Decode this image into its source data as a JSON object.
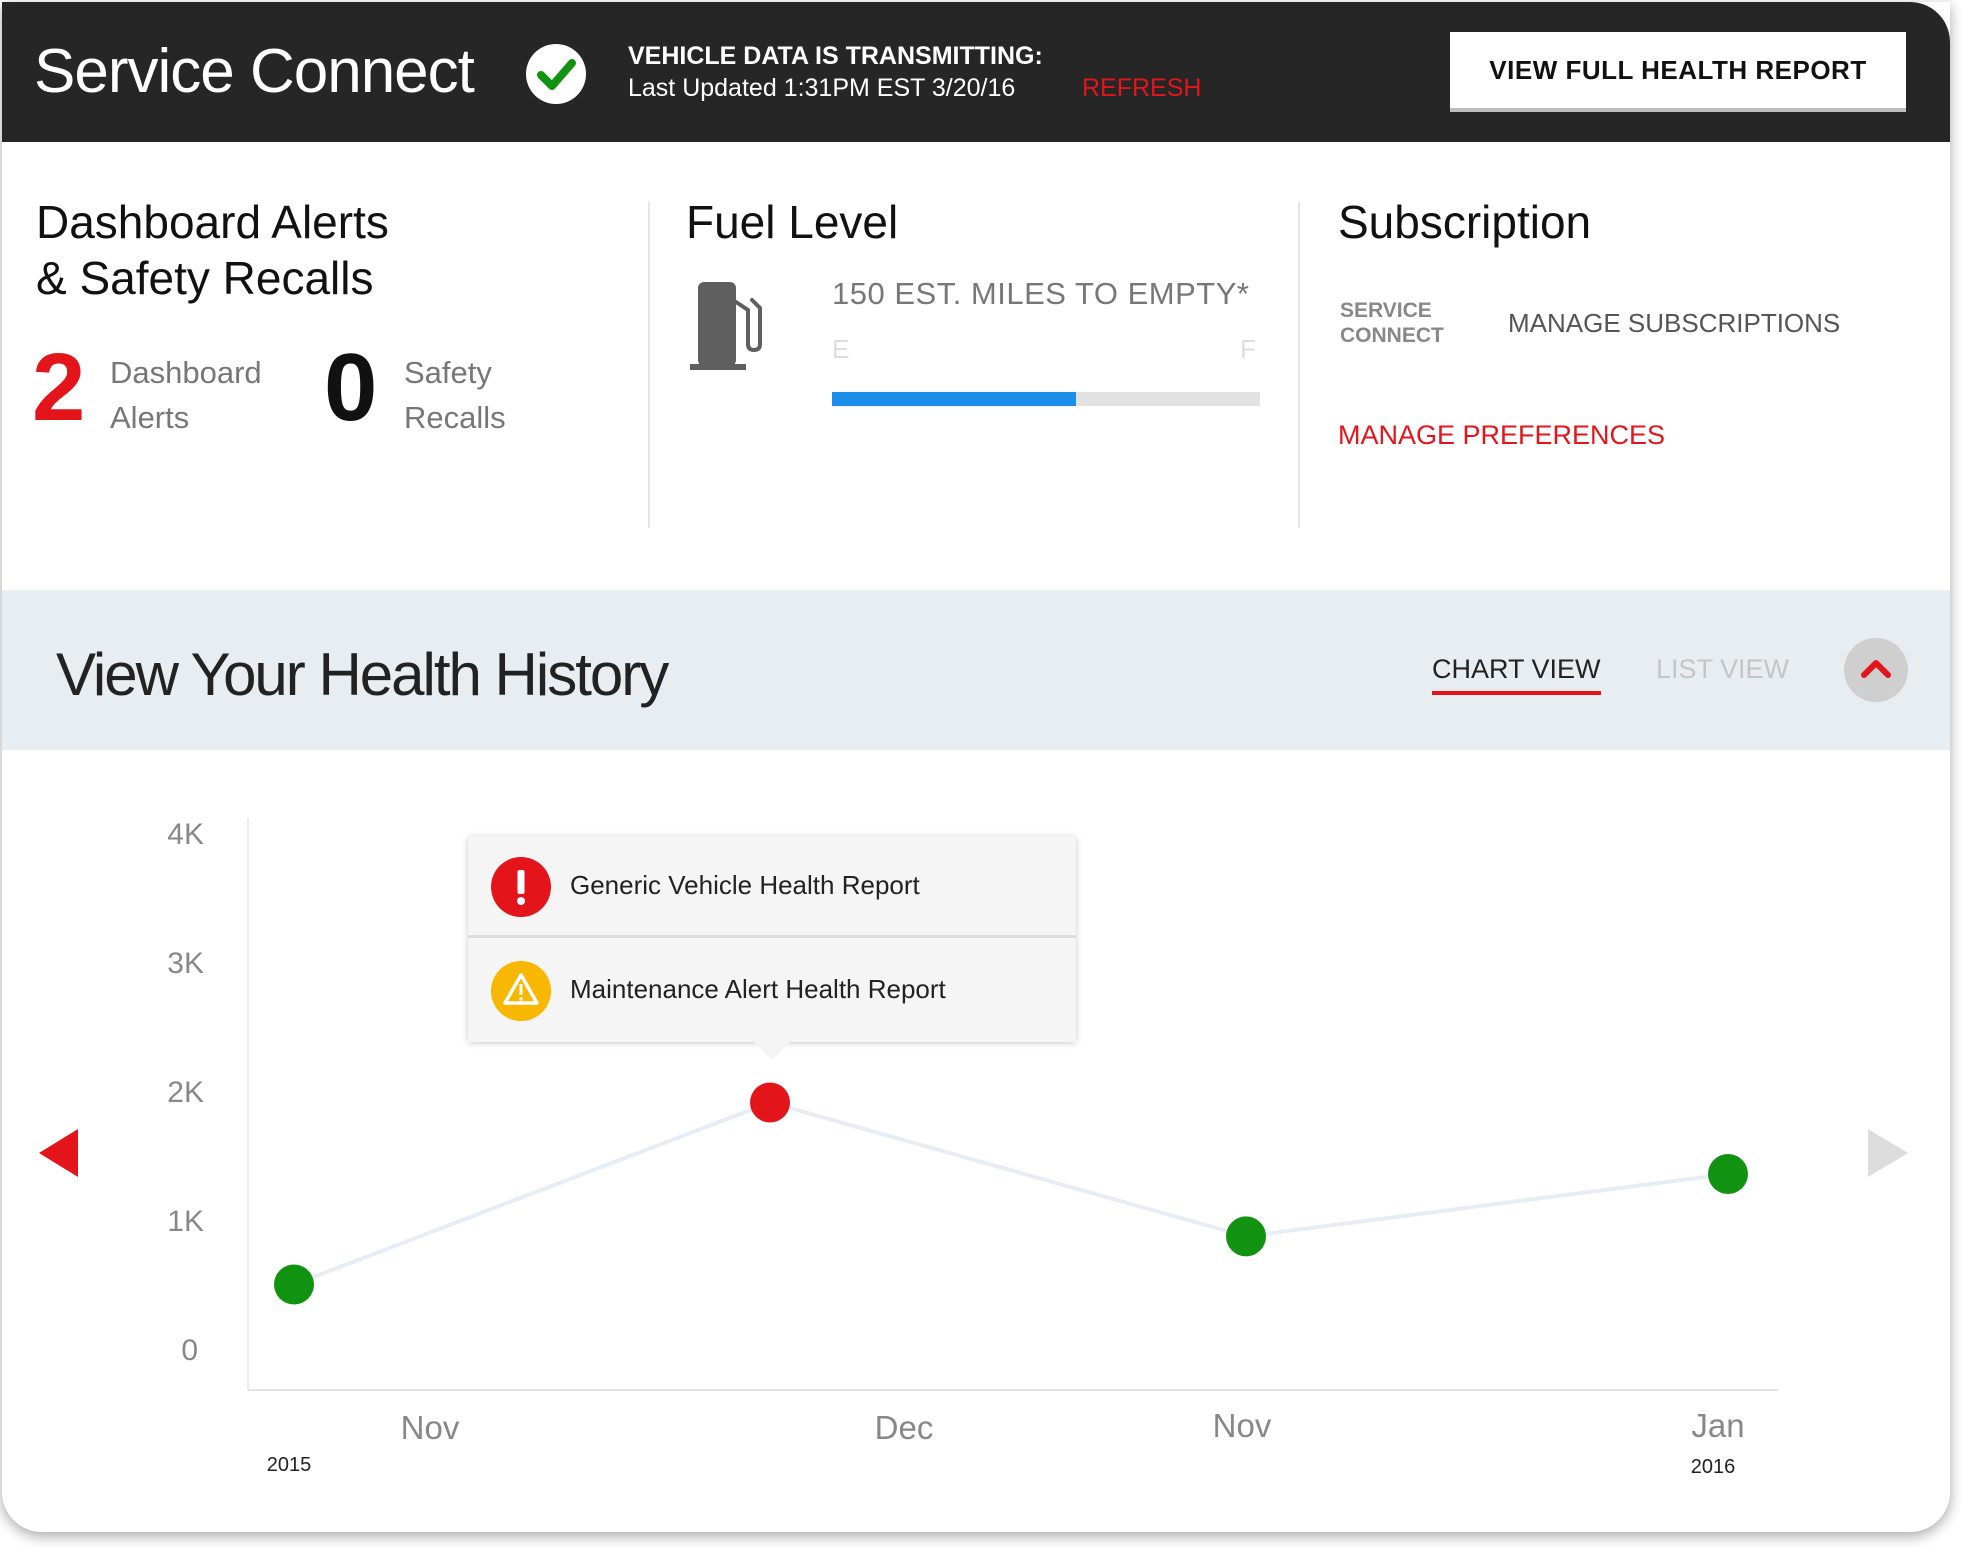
{
  "header": {
    "title": "Service Connect",
    "status_title": "VEHICLE DATA IS TRANSMITTING:",
    "last_updated": "Last Updated 1:31PM EST 3/20/16",
    "refresh_label": "REFRESH",
    "full_report_label": "VIEW FULL HEALTH REPORT"
  },
  "alerts": {
    "title_line1": "Dashboard Alerts",
    "title_line2": "& Safety Recalls",
    "dashboard_count": "2",
    "dashboard_label_1": "Dashboard",
    "dashboard_label_2": "Alerts",
    "recalls_count": "0",
    "recalls_label_1": "Safety",
    "recalls_label_2": "Recalls"
  },
  "fuel": {
    "title": "Fuel Level",
    "miles": "150 EST. MILES TO EMPTY*",
    "empty_label": "E",
    "full_label": "F",
    "level_fraction": 0.57
  },
  "subscription": {
    "title": "Subscription",
    "service_line1": "SERVICE",
    "service_line2": "CONNECT",
    "manage_subscriptions": "MANAGE SUBSCRIPTIONS",
    "manage_preferences": "MANAGE PREFERENCES"
  },
  "history": {
    "title": "View Your Health History",
    "tab_chart": "CHART VIEW",
    "tab_list": "LIST VIEW"
  },
  "popup": {
    "item1": "Generic Vehicle Health Report",
    "item2": "Maintenance Alert Health Report"
  },
  "colors": {
    "accent_red": "#e4141b",
    "ok_green": "#119211",
    "fuel_blue": "#1a8ee8",
    "warning_yellow": "#f8b700"
  },
  "chart_data": {
    "type": "line",
    "yticks": [
      "4K",
      "3K",
      "2K",
      "1K",
      "0"
    ],
    "ylim": [
      0,
      4000
    ],
    "x_labels": [
      "Nov",
      "Dec",
      "Nov",
      "Jan"
    ],
    "year_labels": [
      "2015",
      "2016"
    ],
    "points": [
      {
        "value": 550,
        "status": "ok"
      },
      {
        "value": 1950,
        "status": "alert"
      },
      {
        "value": 920,
        "status": "ok"
      },
      {
        "value": 1400,
        "status": "ok"
      }
    ]
  }
}
